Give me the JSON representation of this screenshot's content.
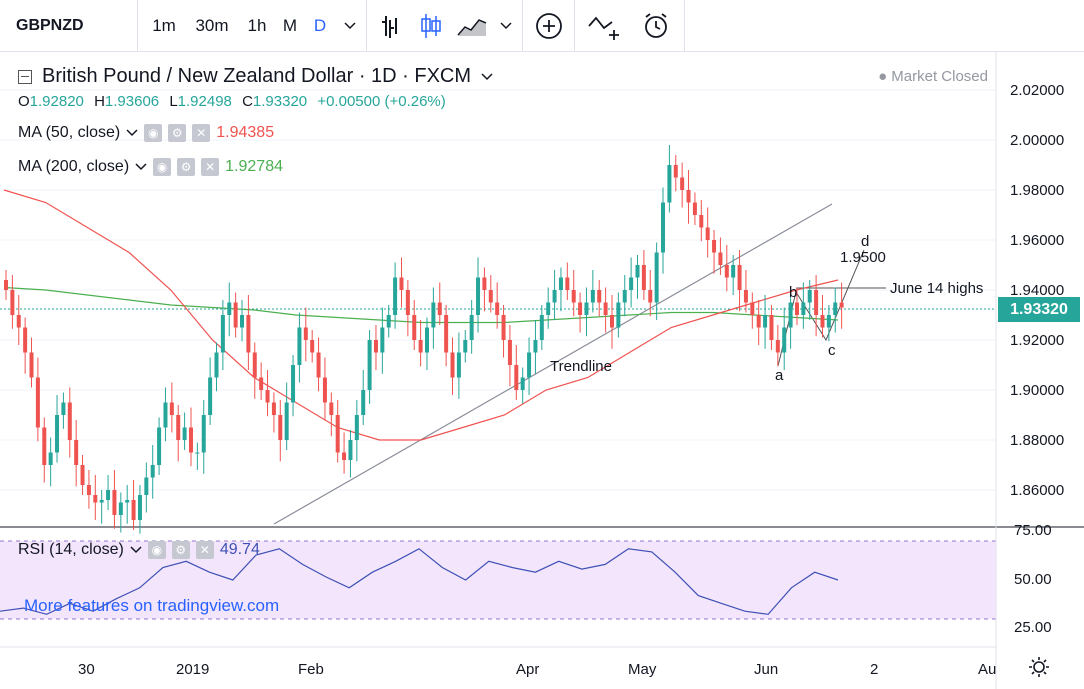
{
  "toolbar": {
    "symbol": "GBPNZD",
    "intervals": [
      "1m",
      "30m",
      "1h",
      "M",
      "D"
    ],
    "active_interval": "D",
    "icons": [
      "chevron-down-icon",
      "bar-style-icon",
      "candles-icon",
      "area-icon",
      "chevron-down-icon",
      "add-compare-icon",
      "indicators-icon",
      "alert-icon"
    ]
  },
  "header": {
    "title": "British Pound / New Zealand Dollar · 1D · FXCM",
    "status": "● Market Closed",
    "ohlc": {
      "o_label": "O",
      "o": "1.92820",
      "h_label": "H",
      "h": "1.93606",
      "l_label": "L",
      "l": "1.92498",
      "c_label": "C",
      "c": "1.93320",
      "change": "+0.00500 (+0.26%)"
    }
  },
  "indicators": {
    "ma50": {
      "label": "MA (50, close)",
      "value": "1.94385",
      "color": "#ef5350"
    },
    "ma200": {
      "label": "MA (200, close)",
      "value": "1.92784",
      "color": "#4caf50"
    },
    "rsi": {
      "label": "RSI (14, close)",
      "value": "49.74",
      "color": "#3f51b5"
    }
  },
  "promo": "More features on tradingview.com",
  "price_axis": {
    "labels": [
      "2.02000",
      "2.00000",
      "1.98000",
      "1.96000",
      "1.94000",
      "1.92000",
      "1.90000",
      "1.88000",
      "1.86000"
    ],
    "current": "1.93320",
    "rsi_labels": [
      "75.00",
      "50.00",
      "25.00"
    ]
  },
  "time_axis": [
    "30",
    "2019",
    "Feb",
    "Apr",
    "May",
    "Jun",
    "2",
    "Au"
  ],
  "annotations": {
    "trendline": "Trendline",
    "june14": "June 14 highs",
    "d": "d",
    "d_value": "1.9500",
    "a": "a",
    "b": "b",
    "c": "c"
  },
  "colors": {
    "up": "#26a69a",
    "down": "#ef5350",
    "rsi_band": "#f3e5fc",
    "accent": "#2962ff"
  },
  "chart_data": {
    "type": "candlestick",
    "title": "British Pound / New Zealand Dollar · 1D · FXCM",
    "ylim": [
      1.845,
      2.03
    ],
    "series": [
      {
        "name": "GBPNZD",
        "values": [
          1.94,
          1.93,
          1.925,
          1.915,
          1.905,
          1.885,
          1.87,
          1.875,
          1.89,
          1.895,
          1.88,
          1.87,
          1.862,
          1.858,
          1.855,
          1.856,
          1.86,
          1.85,
          1.855,
          1.856,
          1.848,
          1.858,
          1.865,
          1.87,
          1.885,
          1.895,
          1.89,
          1.88,
          1.885,
          1.875,
          1.875,
          1.89,
          1.905,
          1.915,
          1.93,
          1.935,
          1.925,
          1.93,
          1.915,
          1.905,
          1.9,
          1.895,
          1.89,
          1.88,
          1.895,
          1.91,
          1.925,
          1.92,
          1.915,
          1.905,
          1.895,
          1.89,
          1.875,
          1.872,
          1.88,
          1.89,
          1.9,
          1.92,
          1.915,
          1.925,
          1.93,
          1.945,
          1.94,
          1.93,
          1.92,
          1.915,
          1.925,
          1.935,
          1.93,
          1.915,
          1.905,
          1.915,
          1.92,
          1.93,
          1.945,
          1.94,
          1.935,
          1.93,
          1.92,
          1.91,
          1.9,
          1.905,
          1.915,
          1.92,
          1.93,
          1.935,
          1.94,
          1.945,
          1.94,
          1.935,
          1.93,
          1.935,
          1.94,
          1.935,
          1.93,
          1.925,
          1.935,
          1.94,
          1.945,
          1.95,
          1.94,
          1.935,
          1.955,
          1.975,
          1.99,
          1.985,
          1.98,
          1.975,
          1.97,
          1.965,
          1.96,
          1.955,
          1.95,
          1.945,
          1.95,
          1.94,
          1.935,
          1.93,
          1.925,
          1.93,
          1.92,
          1.915,
          1.925,
          1.935,
          1.93,
          1.935,
          1.94,
          1.93,
          1.925,
          1.93,
          1.935,
          1.933
        ]
      },
      {
        "name": "MA (50, close)",
        "values": [
          1.98,
          1.975,
          1.965,
          1.955,
          1.94,
          1.92,
          1.905,
          1.895,
          1.885,
          1.88,
          1.88,
          1.885,
          1.89,
          1.9,
          1.905,
          1.915,
          1.925,
          1.93,
          1.935,
          1.94,
          1.944
        ]
      },
      {
        "name": "MA (200, close)",
        "values": [
          1.941,
          1.94,
          1.938,
          1.936,
          1.934,
          1.933,
          1.932,
          1.93,
          1.929,
          1.928,
          1.927,
          1.927,
          1.927,
          1.928,
          1.929,
          1.93,
          1.931,
          1.931,
          1.93,
          1.929,
          1.928
        ]
      },
      {
        "name": "RSI (14, close)",
        "values": [
          30,
          32,
          28,
          35,
          30,
          38,
          45,
          58,
          62,
          55,
          50,
          66,
          70,
          60,
          52,
          45,
          55,
          62,
          70,
          58,
          50,
          62,
          58,
          55,
          62,
          57,
          60,
          70,
          68,
          55,
          40,
          35,
          30,
          28,
          45,
          55,
          50
        ]
      }
    ]
  }
}
